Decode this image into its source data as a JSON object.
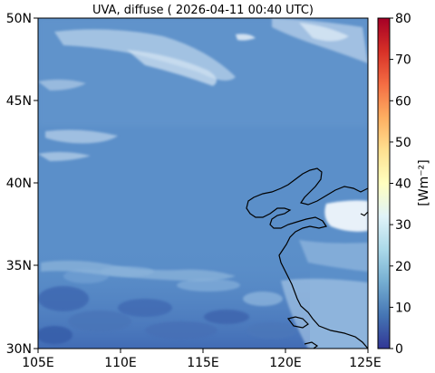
{
  "title": "UVA, diffuse ( 2026-04-11 00:40 UTC)",
  "map": {
    "lon_ticks": [
      "105E",
      "110E",
      "115E",
      "120E",
      "125E"
    ],
    "lat_ticks": [
      "50N",
      "45N",
      "40N",
      "35N",
      "30N"
    ],
    "lon_range": [
      105,
      125
    ],
    "lat_range": [
      30,
      50
    ]
  },
  "colorbar": {
    "label": "[Wm⁻²]",
    "ticks": [
      "80",
      "70",
      "60",
      "50",
      "40",
      "30",
      "20",
      "10",
      "0"
    ],
    "range": [
      0,
      80
    ],
    "colormap": [
      "#313695",
      "#4575b4",
      "#74add1",
      "#abd9e9",
      "#e0f3f8",
      "#ffffbf",
      "#fee090",
      "#fdae61",
      "#f46d43",
      "#d73027",
      "#a50026"
    ]
  },
  "colors": {
    "background_field": "#5b8fc9",
    "cloud": "#c9dcee",
    "coast": "#000000"
  }
}
